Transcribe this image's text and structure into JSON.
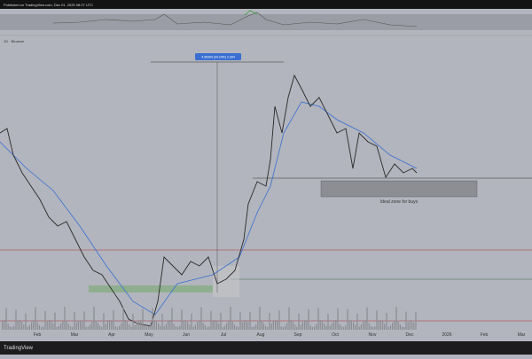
{
  "header": {
    "caption": "Published on TradingView.com, Dec 01, 2025 08:27 UTC",
    "symbol": "1D · Binance"
  },
  "measure": {
    "label": "4.95394 (34.29%) 2,394"
  },
  "annotation": "Ideal zone for buys",
  "time_axis": [
    "Feb",
    "Mar",
    "Apr",
    "May",
    "Jun",
    "Jul",
    "Aug",
    "Sep",
    "Oct",
    "Nov",
    "Dec",
    "2026",
    "Feb",
    "Mar"
  ],
  "footer": {
    "brand": "TradingView"
  }
}
